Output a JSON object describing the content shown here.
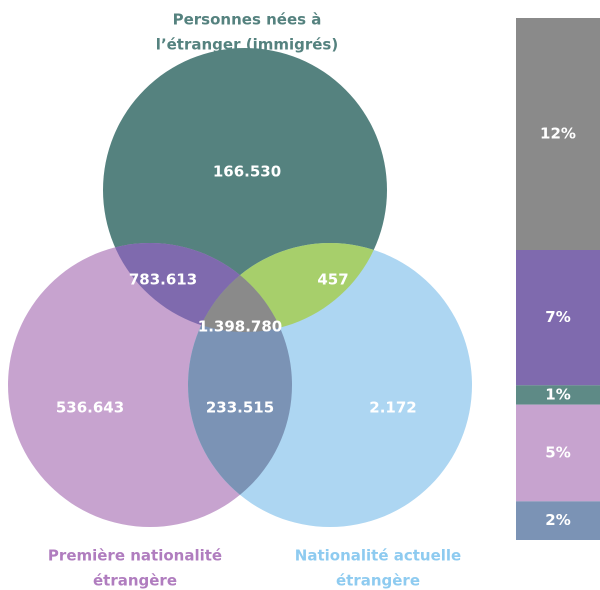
{
  "chart_data": [
    {
      "type": "venn",
      "sets": [
        {
          "name": [
            "Personnes nées à",
            "l’étranger (immigrés)"
          ],
          "color": "#55827f",
          "label_color": "#55827f"
        },
        {
          "name": [
            "Première nationalité",
            "étrangère"
          ],
          "color": "#c7a3cf",
          "label_color": "#b07dbf"
        },
        {
          "name": [
            "Nationalité actuelle",
            "étrangère"
          ],
          "color": "#add6f2",
          "label_color": "#8ecbf0"
        }
      ],
      "regions": [
        {
          "sets": [
            0
          ],
          "value": 166530,
          "value_label": "166.530"
        },
        {
          "sets": [
            1
          ],
          "value": 536643,
          "value_label": "536.643"
        },
        {
          "sets": [
            2
          ],
          "value": 2172,
          "value_label": "2.172"
        },
        {
          "sets": [
            0,
            1
          ],
          "value": 783613,
          "value_label": "783.613",
          "color": "#7f6aae"
        },
        {
          "sets": [
            0,
            2
          ],
          "value": 457,
          "value_label": "457",
          "color": "#a7cf6b"
        },
        {
          "sets": [
            1,
            2
          ],
          "value": 233515,
          "value_label": "233.515",
          "color": "#7b93b5"
        },
        {
          "sets": [
            0,
            1,
            2
          ],
          "value": 1398780,
          "value_label": "1.398.780",
          "color": "#8a8a8a"
        }
      ]
    },
    {
      "type": "stacked_bar",
      "values": [
        12,
        7,
        1,
        5,
        2
      ],
      "value_labels": [
        "12%",
        "7%",
        "1%",
        "5%",
        "2%"
      ],
      "colors": [
        "#8a8a8a",
        "#7f6aae",
        "#5e8a86",
        "#c7a3cf",
        "#7b93b5"
      ]
    }
  ]
}
